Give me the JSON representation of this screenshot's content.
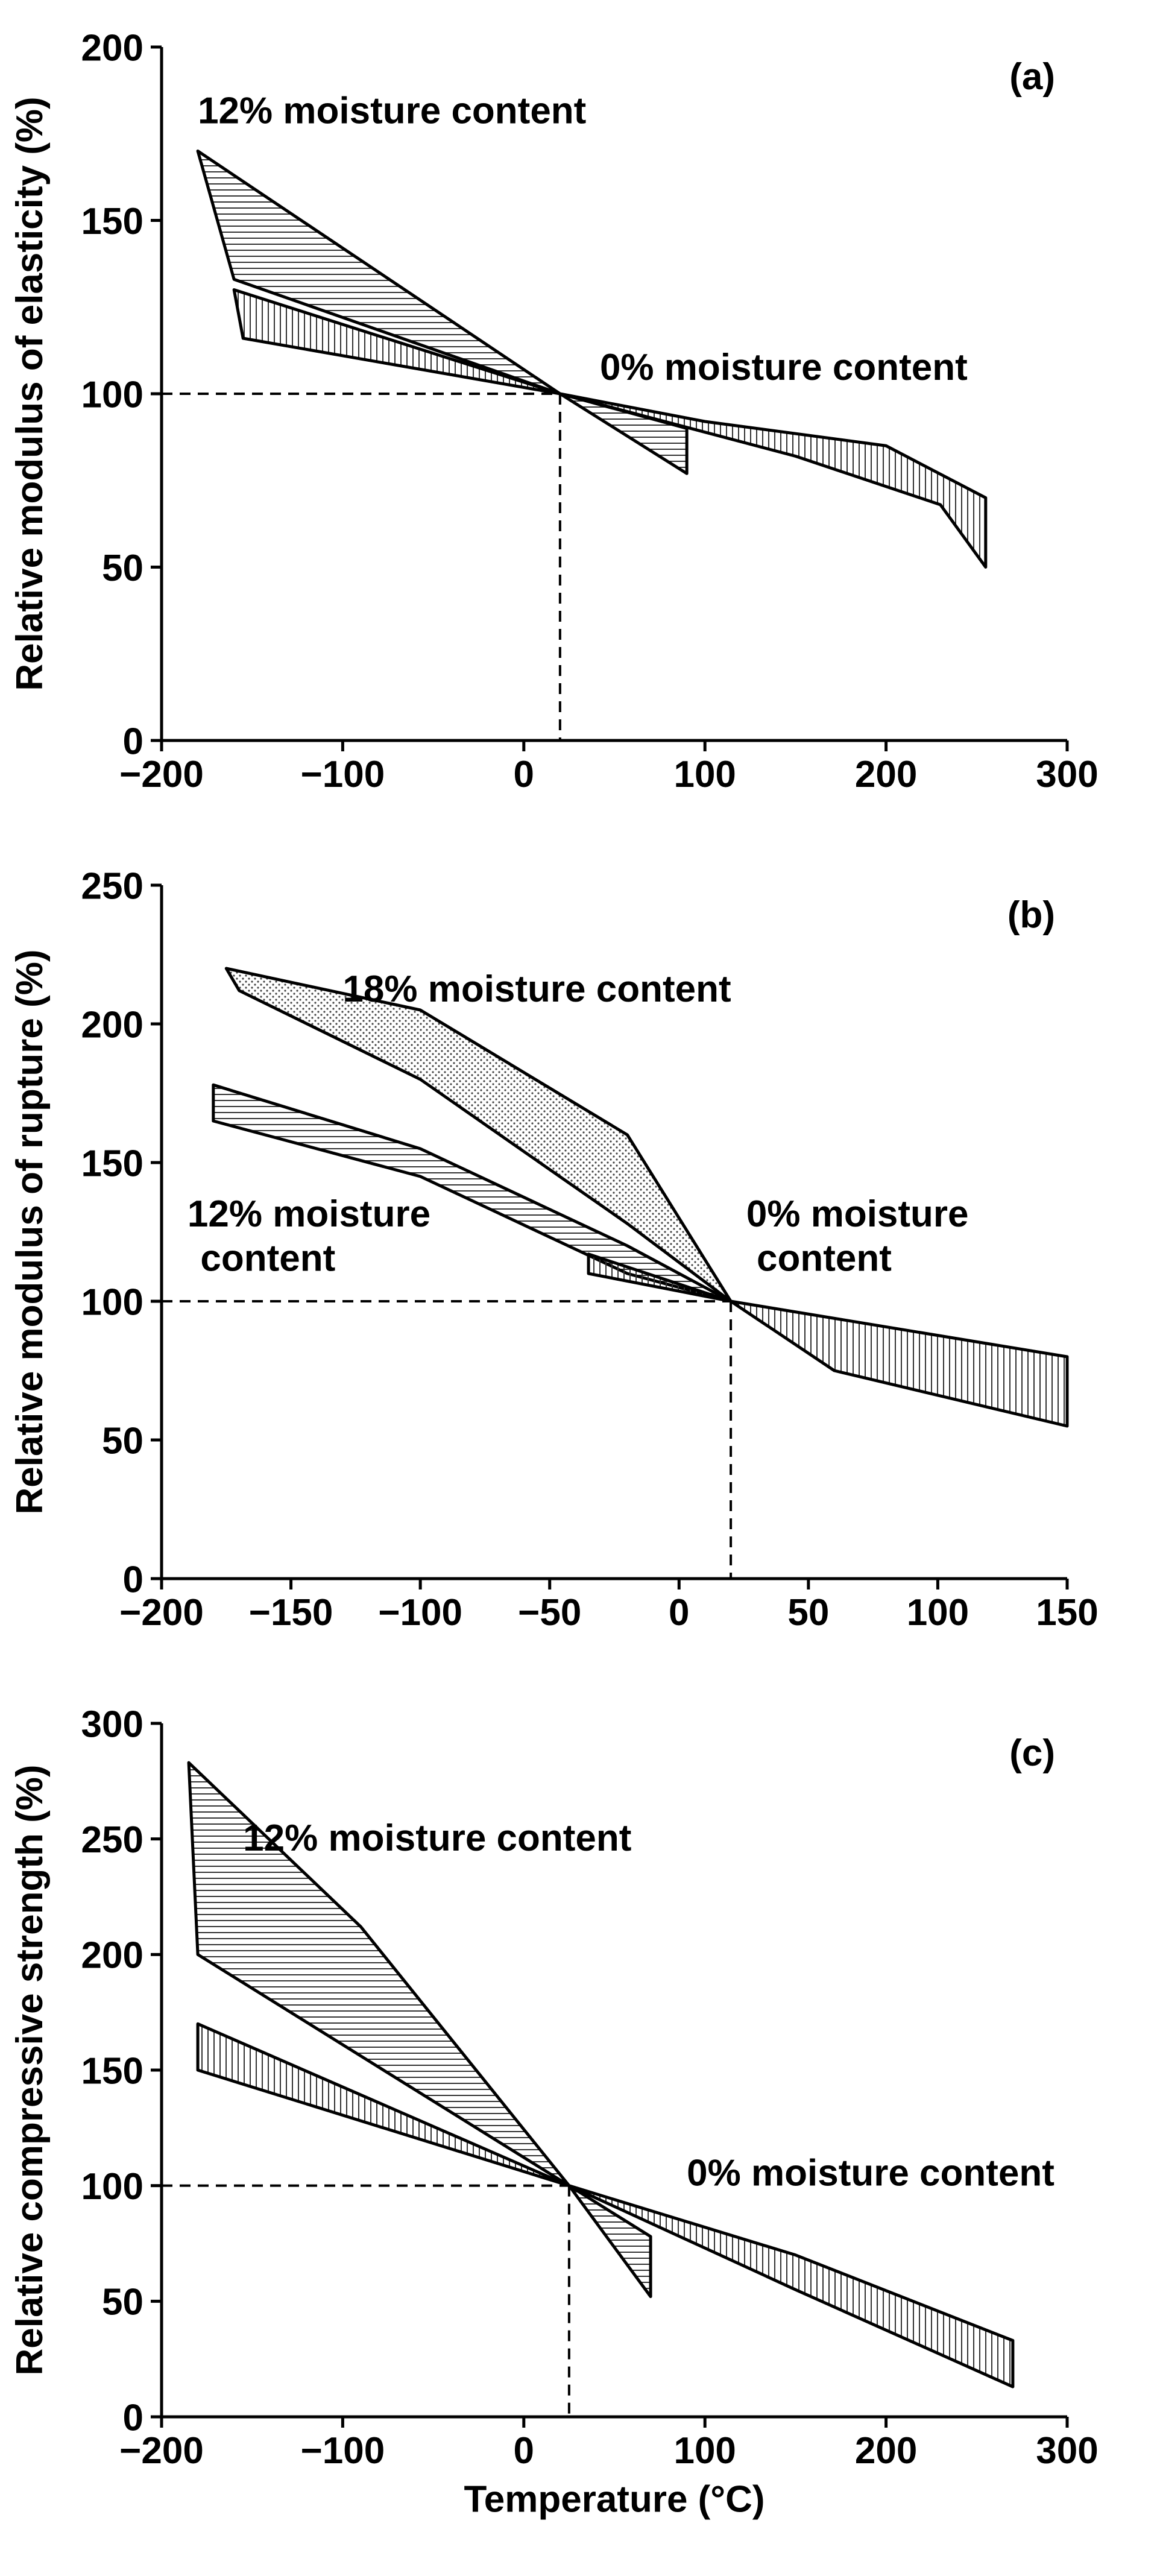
{
  "chart_data": [
    {
      "panel_label": "(a)",
      "type": "area",
      "xlabel": "",
      "ylabel": "Relative modulus of elasticity (%)",
      "xlim": [
        -200,
        300
      ],
      "ylim": [
        0,
        200
      ],
      "xticks": [
        "−200",
        "−100",
        "0",
        "100",
        "200",
        "300"
      ],
      "yticks": [
        "0",
        "50",
        "100",
        "150",
        "200"
      ],
      "reference": {
        "x": 20,
        "y": 100
      },
      "annotations": [
        {
          "text": "12% moisture content",
          "x": -180,
          "y": 178
        },
        {
          "text": "0% moisture content",
          "x": 42,
          "y": 104
        }
      ],
      "series": [
        {
          "name": "12% moisture content",
          "hatch": "horizontal",
          "upper": [
            [
              -180,
              170
            ],
            [
              20,
              100
            ]
          ],
          "lower": [
            [
              -160,
              133
            ],
            [
              20,
              100
            ]
          ],
          "end_x": 90,
          "end_low": 77,
          "end_high": 90
        },
        {
          "name": "0% moisture content",
          "hatch": "vertical",
          "upper": [
            [
              -160,
              130
            ],
            [
              20,
              100
            ],
            [
              100,
              92
            ],
            [
              200,
              85
            ],
            [
              255,
              70
            ]
          ],
          "lower": [
            [
              -155,
              116
            ],
            [
              20,
              100
            ],
            [
              150,
              82
            ],
            [
              230,
              68
            ],
            [
              255,
              50
            ]
          ]
        }
      ]
    },
    {
      "panel_label": "(b)",
      "type": "area",
      "xlabel": "",
      "ylabel": "Relative modulus of rupture (%)",
      "xlim": [
        -200,
        150
      ],
      "ylim": [
        0,
        250
      ],
      "xticks": [
        "−200",
        "−150",
        "−100",
        "−50",
        "0",
        "50",
        "100",
        "150"
      ],
      "yticks": [
        "0",
        "50",
        "100",
        "150",
        "200",
        "250"
      ],
      "reference": {
        "x": 20,
        "y": 100
      },
      "annotations": [
        {
          "text": "18% moisture content",
          "x": -130,
          "y": 208
        },
        {
          "text": "12% moisture",
          "x": -190,
          "y": 127
        },
        {
          "text": "content",
          "x": -185,
          "y": 111
        },
        {
          "text": "0% moisture",
          "x": 26,
          "y": 127
        },
        {
          "text": "content",
          "x": 30,
          "y": 111
        }
      ],
      "series": [
        {
          "name": "18% moisture content",
          "hatch": "dots",
          "upper": [
            [
              -175,
              220
            ],
            [
              -100,
              205
            ],
            [
              -20,
              160
            ],
            [
              20,
              100
            ]
          ],
          "lower": [
            [
              -170,
              212
            ],
            [
              -100,
              180
            ],
            [
              -20,
              128
            ],
            [
              20,
              100
            ]
          ]
        },
        {
          "name": "12% moisture content",
          "hatch": "horizontal",
          "upper": [
            [
              -180,
              178
            ],
            [
              -100,
              155
            ],
            [
              -20,
              120
            ],
            [
              20,
              100
            ]
          ],
          "lower": [
            [
              -180,
              165
            ],
            [
              -100,
              145
            ],
            [
              -20,
              110
            ],
            [
              20,
              100
            ]
          ]
        },
        {
          "name": "0% moisture content",
          "hatch": "vertical",
          "upper": [
            [
              -35,
              117
            ],
            [
              20,
              100
            ],
            [
              150,
              80
            ]
          ],
          "lower": [
            [
              -35,
              110
            ],
            [
              20,
              100
            ],
            [
              60,
              75
            ],
            [
              150,
              55
            ]
          ]
        }
      ]
    },
    {
      "panel_label": "(c)",
      "type": "area",
      "xlabel": "Temperature (°C)",
      "ylabel": "Relative compressive strength (%)",
      "xlim": [
        -200,
        300
      ],
      "ylim": [
        0,
        300
      ],
      "xticks": [
        "−200",
        "−100",
        "0",
        "100",
        "200",
        "300"
      ],
      "yticks": [
        "0",
        "50",
        "100",
        "150",
        "200",
        "250",
        "300"
      ],
      "reference": {
        "x": 25,
        "y": 100
      },
      "annotations": [
        {
          "text": "12% moisture content",
          "x": -155,
          "y": 245
        },
        {
          "text": "0% moisture content",
          "x": 90,
          "y": 100
        }
      ],
      "series": [
        {
          "name": "12% moisture content",
          "hatch": "horizontal",
          "upper": [
            [
              -185,
              283
            ],
            [
              -90,
              212
            ],
            [
              25,
              100
            ]
          ],
          "lower": [
            [
              -180,
              200
            ],
            [
              25,
              100
            ]
          ],
          "end_x": 70,
          "end_low": 52,
          "end_high": 78
        },
        {
          "name": "0% moisture content",
          "hatch": "vertical",
          "upper": [
            [
              -180,
              170
            ],
            [
              25,
              100
            ],
            [
              150,
              70
            ],
            [
              270,
              33
            ]
          ],
          "lower": [
            [
              -180,
              150
            ],
            [
              25,
              100
            ],
            [
              150,
              55
            ],
            [
              270,
              13
            ]
          ]
        }
      ]
    }
  ]
}
